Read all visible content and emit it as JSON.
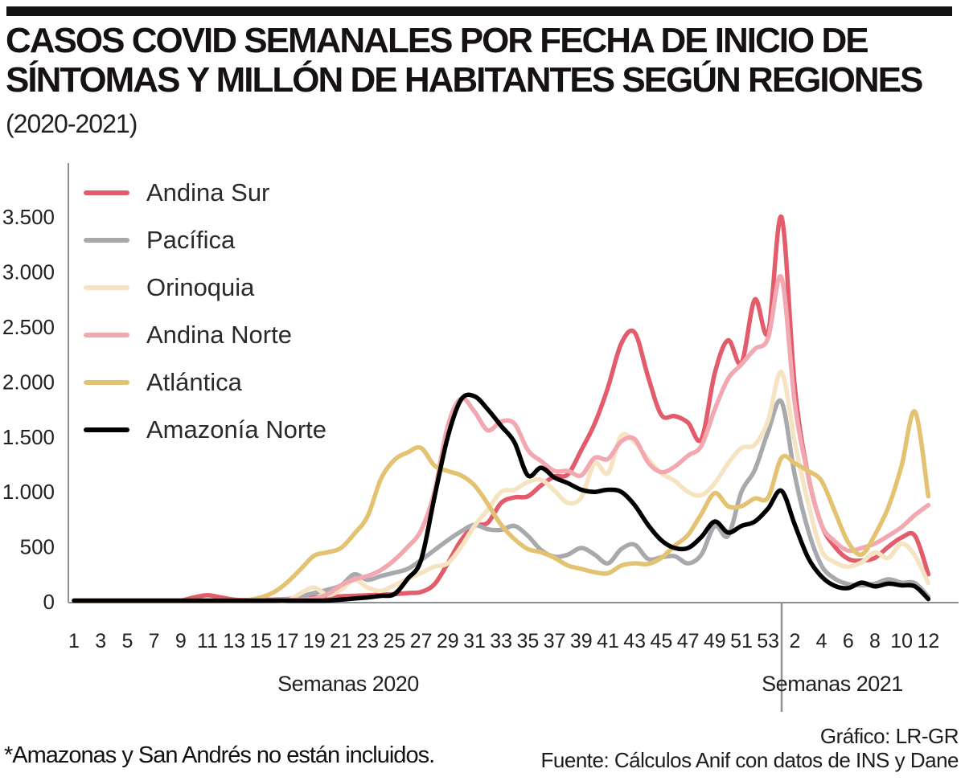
{
  "header": {
    "bar_color": "#131313",
    "title_lines": [
      "CASOS COVID SEMANALES POR FECHA DE INICIO DE",
      "SÍNTOMAS Y MILLÓN DE HABITANTES SEGÚN REGIONES"
    ],
    "subtitle": "(2020-2021)"
  },
  "chart_data": {
    "type": "line",
    "title": "Casos covid semanales por fecha de inicio de síntomas y millón de habitantes según regiones (2020-2021)",
    "grid": false,
    "legend_position": "top-left",
    "axis_color": "#8e9093",
    "y_axis": {
      "range": [
        0,
        3500
      ],
      "tick_values": [
        0,
        500,
        1000,
        1500,
        2000,
        2500,
        3000,
        3500
      ],
      "tick_labels": [
        "0",
        "500",
        "1.000",
        "1.500",
        "2.000",
        "2.500",
        "3.000",
        "3.500"
      ]
    },
    "x_axis": {
      "weeks_total": 65,
      "group_2020": {
        "label": "Semanas 2020",
        "tick_labels": [
          "1",
          "3",
          "5",
          "7",
          "9",
          "11",
          "13",
          "15",
          "17",
          "19",
          "21",
          "23",
          "25",
          "27",
          "29",
          "31",
          "33",
          "35",
          "37",
          "39",
          "41",
          "43",
          "45",
          "47",
          "49",
          "51",
          "53"
        ]
      },
      "group_2021": {
        "label": "Semanas 2021",
        "tick_labels": [
          "2",
          "4",
          "6",
          "8",
          "10",
          "12"
        ]
      }
    },
    "series": [
      {
        "name": "Andina Sur",
        "color": "#e25c6b",
        "values": [
          3,
          3,
          3,
          3,
          4,
          4,
          5,
          6,
          10,
          40,
          60,
          40,
          20,
          15,
          18,
          20,
          25,
          30,
          40,
          45,
          50,
          55,
          60,
          65,
          70,
          80,
          90,
          160,
          350,
          560,
          690,
          720,
          900,
          950,
          960,
          1060,
          1140,
          1160,
          1380,
          1620,
          1950,
          2350,
          2450,
          2050,
          1700,
          1690,
          1630,
          1480,
          2080,
          2380,
          2170,
          2750,
          2450,
          3500,
          1950,
          1150,
          700,
          500,
          390,
          375,
          400,
          500,
          585,
          600,
          250
        ]
      },
      {
        "name": "Pacífica",
        "color": "#a7a9ac",
        "values": [
          0,
          0,
          0,
          0,
          0,
          0,
          0,
          0,
          2,
          3,
          4,
          5,
          6,
          8,
          10,
          15,
          25,
          50,
          80,
          110,
          150,
          250,
          200,
          235,
          265,
          300,
          380,
          470,
          560,
          640,
          700,
          660,
          655,
          690,
          600,
          470,
          410,
          430,
          490,
          430,
          350,
          480,
          520,
          390,
          405,
          415,
          350,
          430,
          690,
          600,
          1000,
          1200,
          1550,
          1820,
          1150,
          650,
          330,
          210,
          160,
          150,
          165,
          205,
          175,
          170,
          45
        ]
      },
      {
        "name": "Orinoquia",
        "color": "#f5e3c1",
        "values": [
          0,
          0,
          0,
          0,
          0,
          0,
          0,
          0,
          0,
          0,
          0,
          0,
          0,
          0,
          0,
          5,
          10,
          80,
          130,
          60,
          110,
          200,
          130,
          100,
          150,
          210,
          260,
          320,
          350,
          500,
          690,
          840,
          1000,
          1020,
          1090,
          1110,
          1010,
          900,
          950,
          1260,
          1170,
          1510,
          1450,
          1300,
          1170,
          1100,
          1000,
          970,
          1080,
          1260,
          1400,
          1430,
          1650,
          2090,
          1450,
          900,
          470,
          360,
          320,
          360,
          450,
          400,
          530,
          420,
          170
        ]
      },
      {
        "name": "Andina Norte",
        "color": "#f2a8b1",
        "values": [
          0,
          0,
          0,
          0,
          0,
          0,
          0,
          0,
          3,
          5,
          8,
          8,
          8,
          8,
          10,
          12,
          15,
          20,
          30,
          70,
          150,
          205,
          235,
          290,
          380,
          500,
          650,
          1000,
          1600,
          1850,
          1730,
          1560,
          1640,
          1620,
          1380,
          1280,
          1190,
          1190,
          1150,
          1310,
          1300,
          1460,
          1480,
          1270,
          1180,
          1230,
          1330,
          1420,
          1750,
          2030,
          2160,
          2300,
          2400,
          2950,
          1800,
          1150,
          700,
          550,
          465,
          490,
          530,
          600,
          680,
          790,
          880
        ]
      },
      {
        "name": "Atlántica",
        "color": "#e3c372",
        "values": [
          5,
          5,
          5,
          5,
          5,
          5,
          5,
          5,
          6,
          6,
          8,
          8,
          10,
          15,
          40,
          90,
          180,
          300,
          420,
          450,
          490,
          620,
          780,
          1120,
          1290,
          1360,
          1400,
          1240,
          1190,
          1150,
          1060,
          890,
          700,
          570,
          480,
          450,
          400,
          330,
          300,
          270,
          260,
          330,
          350,
          345,
          400,
          510,
          610,
          800,
          990,
          870,
          870,
          940,
          950,
          1310,
          1260,
          1190,
          1100,
          820,
          540,
          430,
          610,
          860,
          1240,
          1730,
          960
        ]
      },
      {
        "name": "Amazonía Norte",
        "color": "#000000",
        "values": [
          0,
          0,
          0,
          0,
          0,
          0,
          0,
          0,
          0,
          0,
          0,
          0,
          0,
          0,
          2,
          3,
          5,
          6,
          8,
          12,
          20,
          30,
          40,
          55,
          70,
          210,
          380,
          950,
          1500,
          1840,
          1870,
          1750,
          1600,
          1450,
          1150,
          1220,
          1130,
          1080,
          1020,
          1000,
          1020,
          1000,
          880,
          700,
          560,
          490,
          490,
          590,
          730,
          630,
          690,
          730,
          850,
          1010,
          700,
          400,
          230,
          145,
          125,
          175,
          140,
          165,
          150,
          140,
          25
        ]
      }
    ]
  },
  "footer": {
    "footnote": "*Amazonas y San Andrés no están incluidos.",
    "credit_line1": "Gráfico: LR-GR",
    "credit_line2": "Fuente: Cálculos Anif con datos de INS y Dane"
  }
}
